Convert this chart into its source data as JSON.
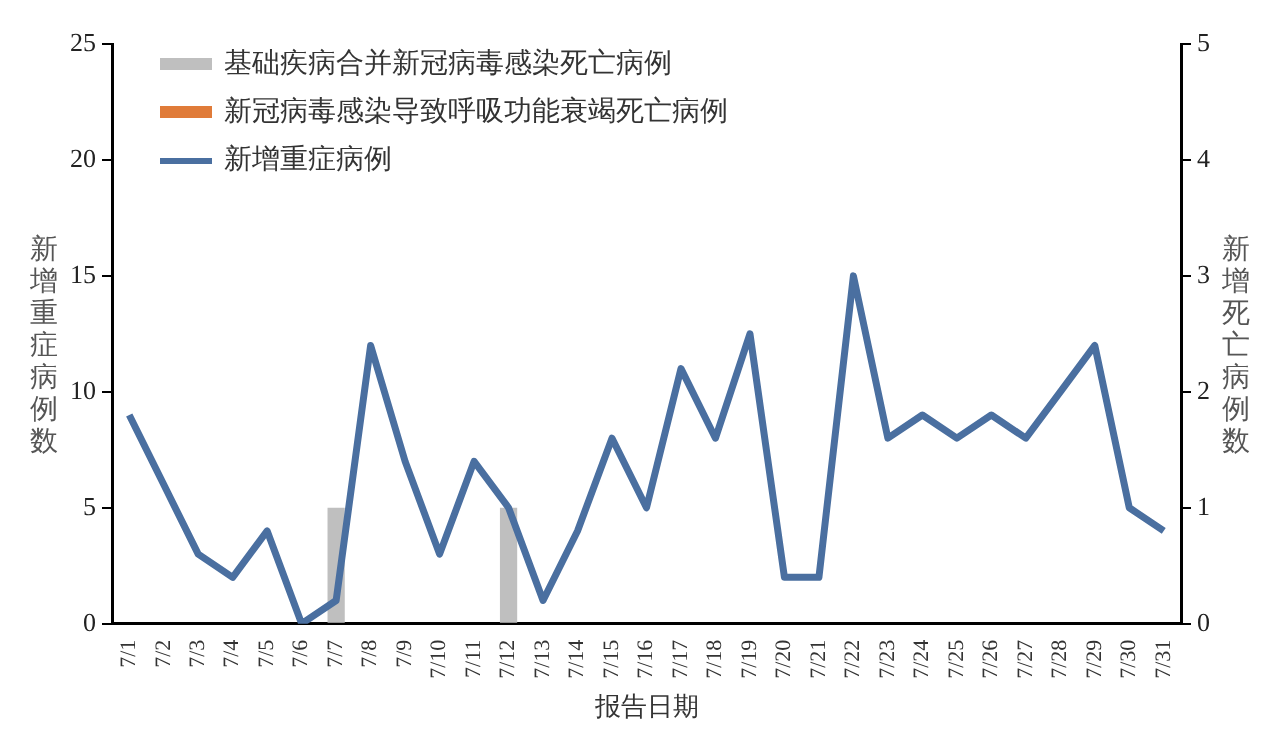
{
  "chart_data": {
    "type": "bar",
    "xlabel": "报告日期",
    "ylabel": "新增重症病例数",
    "y2label": "新增死亡病例数",
    "categories": [
      "7/1",
      "7/2",
      "7/3",
      "7/4",
      "7/5",
      "7/6",
      "7/7",
      "7/8",
      "7/9",
      "7/10",
      "7/11",
      "7/12",
      "7/13",
      "7/14",
      "7/15",
      "7/16",
      "7/17",
      "7/18",
      "7/19",
      "7/20",
      "7/21",
      "7/22",
      "7/23",
      "7/24",
      "7/25",
      "7/26",
      "7/27",
      "7/28",
      "7/29",
      "7/30",
      "7/31"
    ],
    "series": [
      {
        "name": "基础疾病合并新冠病毒感染死亡病例",
        "axis": "y2",
        "color": "#bfbfbf",
        "values": [
          null,
          null,
          null,
          null,
          null,
          null,
          1,
          null,
          null,
          null,
          null,
          1,
          null,
          null,
          null,
          null,
          null,
          null,
          null,
          null,
          null,
          null,
          null,
          null,
          null,
          null,
          null,
          null,
          null,
          null,
          null
        ]
      },
      {
        "name": "新冠病毒感染导致呼吸功能衰竭死亡病例",
        "axis": "y2",
        "color": "#e07b39",
        "values": [
          null,
          null,
          null,
          null,
          null,
          null,
          null,
          null,
          null,
          null,
          null,
          null,
          null,
          null,
          null,
          null,
          null,
          null,
          null,
          null,
          null,
          null,
          null,
          null,
          null,
          null,
          null,
          null,
          null,
          null,
          null
        ]
      },
      {
        "name": "新增重症病例",
        "type": "line",
        "color": "#4a6fa0",
        "values": [
          9,
          6,
          3,
          2,
          4,
          0,
          1,
          12,
          7,
          3,
          7,
          5,
          1,
          4,
          8,
          5,
          11,
          8,
          12.5,
          2,
          2,
          15,
          8,
          9,
          8,
          9,
          8,
          10,
          12,
          5,
          4
        ]
      }
    ],
    "ylim": [
      0,
      25
    ],
    "yticks": [
      0,
      5,
      10,
      15,
      20,
      25
    ],
    "y2lim": [
      0,
      5
    ],
    "y2ticks": [
      0,
      1,
      2,
      3,
      4,
      5
    ],
    "grid": false,
    "legend": "top left",
    "marker": "none",
    "line_style": "solid"
  }
}
